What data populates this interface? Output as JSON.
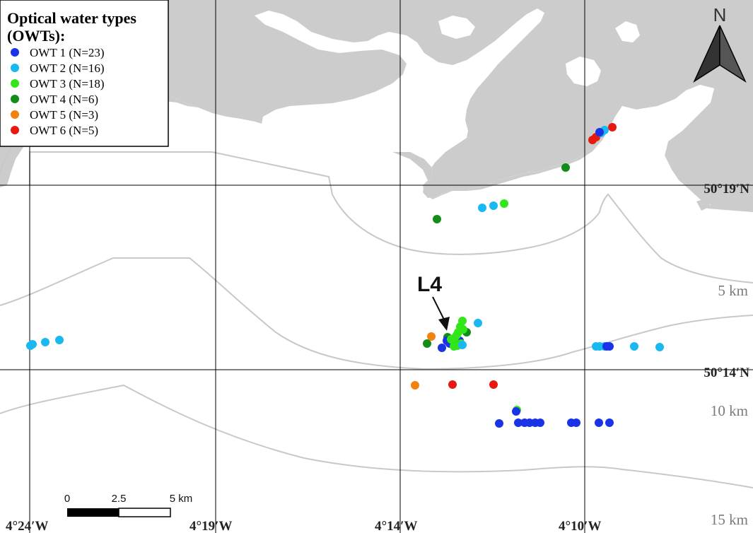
{
  "legend": {
    "title_line1": "Optical water types",
    "title_line2": "(OWTs):",
    "items": [
      {
        "label": "OWT 1 (N=23)",
        "color": "#1a33e6"
      },
      {
        "label": "OWT 2 (N=16)",
        "color": "#1ab8f0"
      },
      {
        "label": "OWT 3 (N=18)",
        "color": "#33e61a"
      },
      {
        "label": "OWT 4 (N=6)",
        "color": "#138c1a"
      },
      {
        "label": "OWT 5 (N=3)",
        "color": "#f0820f"
      },
      {
        "label": "OWT 6 (N=5)",
        "color": "#e61a0f"
      }
    ]
  },
  "north_arrow": {
    "label": "N"
  },
  "graticule": {
    "longitudes": [
      "4°24′W",
      "4°19′W",
      "4°14′W",
      "4°10′W"
    ],
    "latitudes": [
      "50°19′N",
      "50°14′N"
    ]
  },
  "distance_rings": [
    "5 km",
    "10 km",
    "15 km"
  ],
  "station": {
    "label": "L4"
  },
  "scale_bar": {
    "ticks": [
      "0",
      "2.5",
      "5 km"
    ]
  },
  "colors": {
    "land": "#cccccc",
    "sea": "#ffffff",
    "ring": "#c8c8c8",
    "grid": "#000000"
  }
}
